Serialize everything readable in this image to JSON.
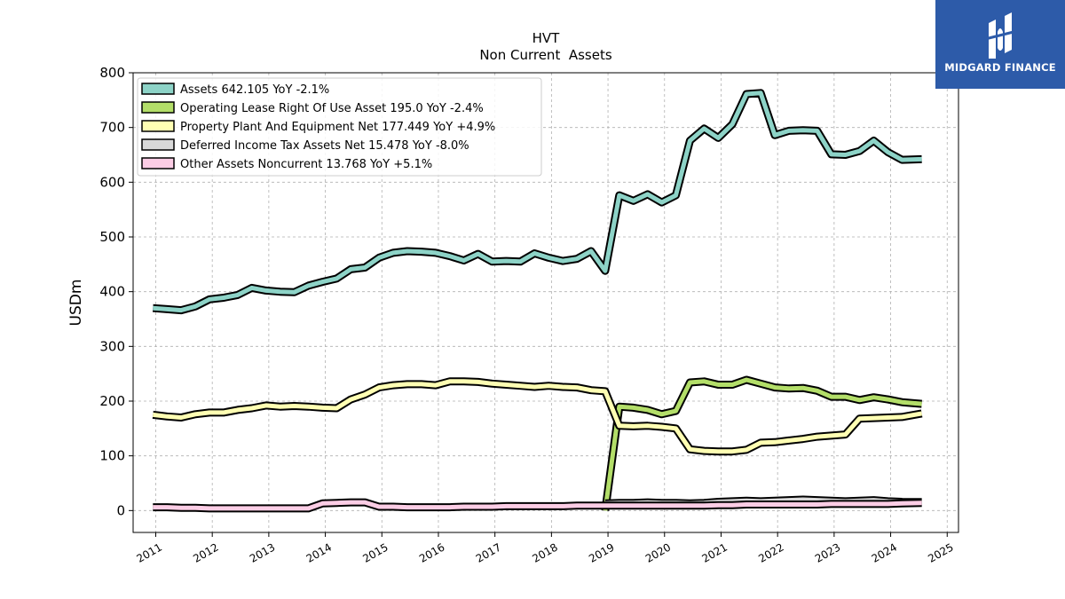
{
  "chart_data": {
    "type": "line",
    "title": "HVT",
    "subtitle": "Non Current  Assets",
    "ylabel": "USDm",
    "xlabel": "",
    "ylim": [
      -40,
      800
    ],
    "xlim": [
      2010.6,
      2025.2
    ],
    "grid": true,
    "legend_position": "top-left",
    "y_ticks": [
      0,
      100,
      200,
      300,
      400,
      500,
      600,
      700,
      800
    ],
    "x_ticks": [
      "2011",
      "2012",
      "2013",
      "2014",
      "2015",
      "2016",
      "2017",
      "2018",
      "2019",
      "2020",
      "2021",
      "2022",
      "2023",
      "2024",
      "2025"
    ],
    "series": [
      {
        "name": "Assets",
        "legend": "Assets  642.105 YoY -2.1%",
        "color": "#8dd3c7",
        "x": [
          2010.95,
          2011.2,
          2011.45,
          2011.7,
          2011.95,
          2012.2,
          2012.45,
          2012.7,
          2012.95,
          2013.2,
          2013.45,
          2013.7,
          2013.95,
          2014.2,
          2014.45,
          2014.7,
          2014.95,
          2015.2,
          2015.45,
          2015.7,
          2015.95,
          2016.2,
          2016.45,
          2016.7,
          2016.95,
          2017.2,
          2017.45,
          2017.7,
          2017.95,
          2018.2,
          2018.45,
          2018.7,
          2018.95,
          2019.2,
          2019.45,
          2019.7,
          2019.95,
          2020.2,
          2020.45,
          2020.7,
          2020.95,
          2021.2,
          2021.45,
          2021.7,
          2021.95,
          2022.2,
          2022.45,
          2022.7,
          2022.95,
          2023.2,
          2023.45,
          2023.7,
          2023.95,
          2024.2,
          2024.55
        ],
        "values": [
          370,
          368,
          366,
          373,
          386,
          389,
          394,
          407,
          402,
          400,
          399,
          411,
          418,
          424,
          441,
          444,
          462,
          471,
          474,
          473,
          471,
          465,
          457,
          469,
          455,
          456,
          455,
          470,
          462,
          456,
          460,
          474,
          438,
          576,
          566,
          578,
          563,
          576,
          676,
          698,
          681,
          706,
          761,
          763,
          686,
          694,
          695,
          694,
          651,
          650,
          657,
          676,
          655,
          641,
          642.105
        ]
      },
      {
        "name": "Operating Lease Right Of Use Asset",
        "legend": "Operating Lease Right Of Use Asset  195.0 YoY -2.4%",
        "color": "#b3de69",
        "x": [
          2018.95,
          2019.2,
          2019.45,
          2019.7,
          2019.95,
          2020.2,
          2020.45,
          2020.7,
          2020.95,
          2021.2,
          2021.45,
          2021.7,
          2021.95,
          2022.2,
          2022.45,
          2022.7,
          2022.95,
          2023.2,
          2023.45,
          2023.7,
          2023.95,
          2024.2,
          2024.55
        ],
        "values": [
          0,
          190,
          188,
          184,
          176,
          182,
          234,
          236,
          230,
          230,
          239,
          232,
          225,
          223,
          224,
          219,
          208,
          208,
          202,
          207,
          203,
          198,
          195.0
        ]
      },
      {
        "name": "Property Plant And Equipment Net",
        "legend": "Property Plant And Equipment Net  177.449 YoY +4.9%",
        "color": "#ffffb3",
        "x": [
          2010.95,
          2011.2,
          2011.45,
          2011.7,
          2011.95,
          2012.2,
          2012.45,
          2012.7,
          2012.95,
          2013.2,
          2013.45,
          2013.7,
          2013.95,
          2014.2,
          2014.45,
          2014.7,
          2014.95,
          2015.2,
          2015.45,
          2015.7,
          2015.95,
          2016.2,
          2016.45,
          2016.7,
          2016.95,
          2017.2,
          2017.45,
          2017.7,
          2017.95,
          2018.2,
          2018.45,
          2018.7,
          2018.95,
          2019.2,
          2019.45,
          2019.7,
          2019.95,
          2020.2,
          2020.45,
          2020.7,
          2020.95,
          2021.2,
          2021.45,
          2021.7,
          2021.95,
          2022.2,
          2022.45,
          2022.7,
          2022.95,
          2023.2,
          2023.45,
          2023.7,
          2023.95,
          2024.2,
          2024.55
        ],
        "values": [
          175,
          172,
          170,
          176,
          179,
          179,
          184,
          187,
          192,
          190,
          191,
          190,
          188,
          187,
          203,
          212,
          225,
          229,
          231,
          231,
          229,
          236,
          236,
          235,
          232,
          230,
          228,
          226,
          228,
          226,
          225,
          220,
          218,
          155,
          154,
          155,
          153,
          150,
          112,
          109,
          108,
          108,
          111,
          124,
          125,
          128,
          131,
          135,
          137,
          139,
          168,
          169,
          170,
          171,
          177.449
        ]
      },
      {
        "name": "Deferred Income Tax Assets Net",
        "legend": "Deferred Income Tax Assets Net  15.478 YoY -8.0%",
        "color": "#d9d9d9",
        "x": [
          2018.95,
          2019.2,
          2019.45,
          2019.7,
          2019.95,
          2020.2,
          2020.45,
          2020.7,
          2020.95,
          2021.2,
          2021.45,
          2021.7,
          2021.95,
          2022.2,
          2022.45,
          2022.7,
          2022.95,
          2023.2,
          2023.45,
          2023.7,
          2023.95,
          2024.2,
          2024.55
        ],
        "values": [
          13,
          14,
          14,
          15,
          14,
          14,
          13,
          14,
          16,
          17,
          18,
          17,
          18,
          19,
          20,
          19,
          18,
          17,
          18,
          19,
          17,
          16,
          15.478
        ]
      },
      {
        "name": "Other Assets Noncurrent",
        "legend": "Other Assets Noncurrent  13.768 YoY +5.1%",
        "color": "#fccde5",
        "x": [
          2010.95,
          2011.2,
          2011.45,
          2011.7,
          2011.95,
          2012.2,
          2012.45,
          2012.7,
          2012.95,
          2013.2,
          2013.45,
          2013.7,
          2013.95,
          2014.2,
          2014.45,
          2014.7,
          2014.95,
          2015.2,
          2015.45,
          2015.7,
          2015.95,
          2016.2,
          2016.45,
          2016.7,
          2016.95,
          2017.2,
          2017.45,
          2017.7,
          2017.95,
          2018.2,
          2018.45,
          2018.7,
          2018.95,
          2019.2,
          2019.45,
          2019.7,
          2019.95,
          2020.2,
          2020.45,
          2020.7,
          2020.95,
          2021.2,
          2021.45,
          2021.7,
          2021.95,
          2022.2,
          2022.45,
          2022.7,
          2022.95,
          2023.2,
          2023.45,
          2023.7,
          2023.95,
          2024.2,
          2024.55
        ],
        "values": [
          6,
          6,
          5,
          5,
          4,
          4,
          4,
          4,
          4,
          4,
          4,
          4,
          13,
          14,
          15,
          15,
          7,
          7,
          6,
          6,
          6,
          6,
          7,
          7,
          7,
          8,
          8,
          8,
          8,
          8,
          9,
          9,
          9,
          9,
          9,
          9,
          9,
          9,
          9,
          9,
          10,
          10,
          11,
          11,
          11,
          11,
          11,
          11,
          12,
          12,
          12,
          12,
          12,
          13,
          13.768
        ]
      }
    ]
  },
  "logo": {
    "text": "MIDGARD FINANCE",
    "color": "#2d5ba9"
  }
}
